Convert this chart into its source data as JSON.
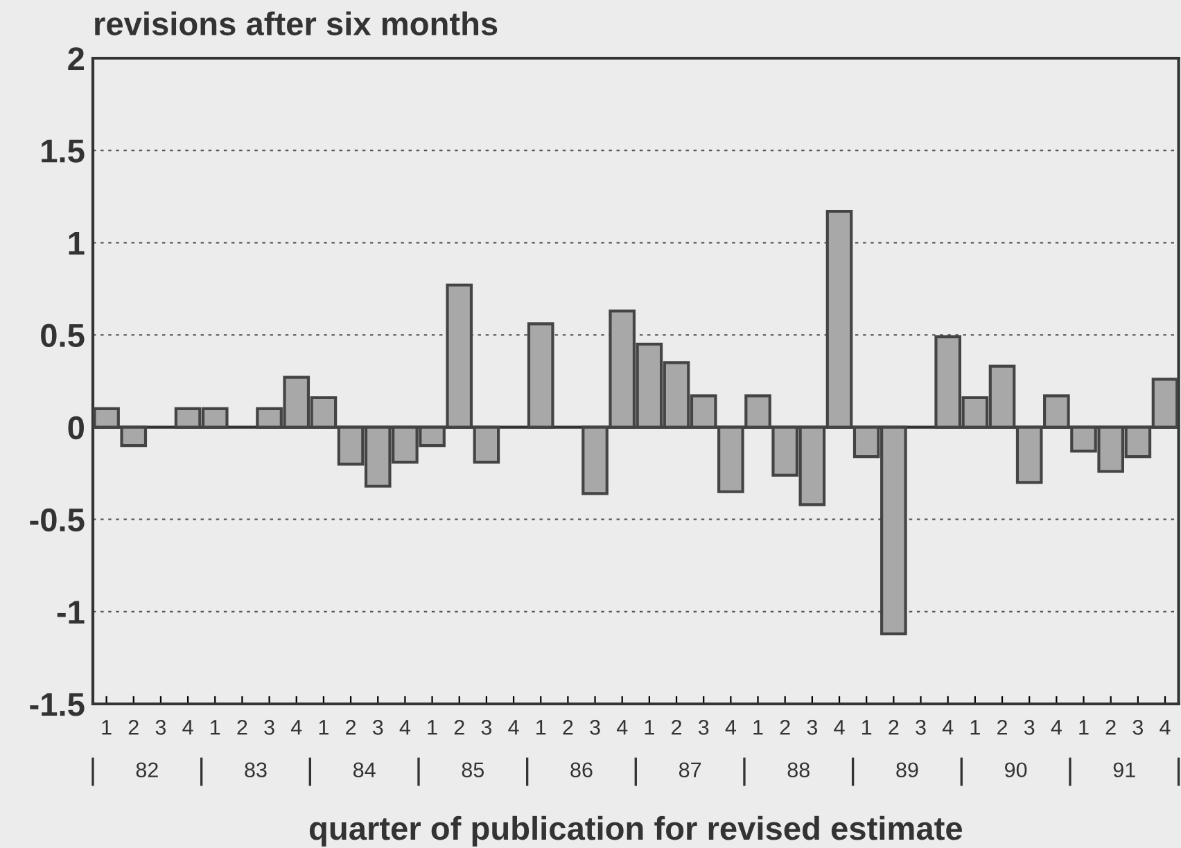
{
  "chart_data": {
    "type": "bar",
    "title": "revisions after six months",
    "xlabel": "quarter of publication for revised estimate",
    "categories": [
      "1",
      "2",
      "3",
      "4",
      "1",
      "2",
      "3",
      "4",
      "1",
      "2",
      "3",
      "4",
      "1",
      "2",
      "3",
      "4",
      "1",
      "2",
      "3",
      "4",
      "1",
      "2",
      "3",
      "4",
      "1",
      "2",
      "3",
      "4",
      "1",
      "2",
      "3",
      "4",
      "1",
      "2",
      "3",
      "4",
      "1",
      "2",
      "3",
      "4"
    ],
    "annotations": [
      "82",
      "83",
      "84",
      "85",
      "86",
      "87",
      "88",
      "89",
      "90",
      "91"
    ],
    "values": [
      0.1,
      -0.1,
      null,
      0.1,
      0.1,
      null,
      0.1,
      0.27,
      0.16,
      -0.2,
      -0.32,
      -0.19,
      -0.1,
      0.77,
      -0.19,
      null,
      0.56,
      null,
      -0.36,
      0.63,
      0.45,
      0.35,
      0.17,
      -0.35,
      0.17,
      -0.26,
      -0.42,
      1.17,
      -0.16,
      -1.12,
      null,
      0.49,
      0.16,
      0.33,
      -0.3,
      0.17,
      -0.13,
      -0.24,
      -0.16,
      0.26
    ],
    "color": "#a8a8a8",
    "ylim": [
      -1.5,
      2
    ],
    "yticks": [
      -1.5,
      -1,
      -0.5,
      0,
      0.5,
      1,
      1.5,
      2
    ],
    "grid": "y"
  }
}
